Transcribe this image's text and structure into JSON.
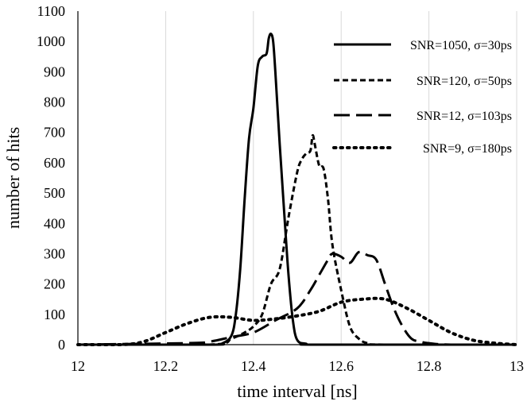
{
  "chart_data": {
    "type": "line",
    "title": "",
    "xlabel": "time interval [ns]",
    "ylabel": "number of hits",
    "xlim": [
      12,
      13
    ],
    "ylim": [
      0,
      1100
    ],
    "xticks": [
      12,
      12.2,
      12.4,
      12.6,
      12.8,
      13
    ],
    "xtick_labels": [
      "12",
      "12.2",
      "12.4",
      "12.6",
      "12.8",
      "13"
    ],
    "yticks": [
      0,
      100,
      200,
      300,
      400,
      500,
      600,
      700,
      800,
      900,
      1000,
      1100
    ],
    "ytick_labels": [
      "0",
      "100",
      "200",
      "300",
      "400",
      "500",
      "600",
      "700",
      "800",
      "900",
      "1000",
      "1100"
    ],
    "grid": "vertical",
    "legend_position": "top-right",
    "series": [
      {
        "name": "SNR=1050, σ=30ps",
        "style": "solid",
        "color": "#000000",
        "x": [
          12.0,
          12.3,
          12.33,
          12.35,
          12.36,
          12.37,
          12.38,
          12.39,
          12.4,
          12.41,
          12.42,
          12.43,
          12.435,
          12.44,
          12.445,
          12.45,
          12.46,
          12.47,
          12.48,
          12.49,
          12.5,
          12.52,
          12.55,
          13.0
        ],
        "y": [
          0,
          0,
          5,
          30,
          100,
          250,
          480,
          680,
          780,
          920,
          950,
          960,
          1010,
          1025,
          1000,
          900,
          660,
          440,
          230,
          80,
          15,
          3,
          0,
          0
        ]
      },
      {
        "name": "SNR=120, σ=50ps",
        "style": "dashed",
        "color": "#000000",
        "x": [
          12.0,
          12.3,
          12.35,
          12.38,
          12.4,
          12.42,
          12.44,
          12.46,
          12.48,
          12.5,
          12.51,
          12.52,
          12.53,
          12.535,
          12.54,
          12.55,
          12.56,
          12.57,
          12.58,
          12.6,
          12.62,
          12.64,
          12.66,
          12.7,
          13.0
        ],
        "y": [
          0,
          0,
          20,
          40,
          60,
          100,
          200,
          250,
          420,
          570,
          610,
          630,
          640,
          690,
          660,
          590,
          580,
          480,
          330,
          180,
          60,
          20,
          5,
          0,
          0
        ]
      },
      {
        "name": "SNR=12, σ=103ps",
        "style": "long-dash",
        "color": "#000000",
        "x": [
          12.0,
          12.25,
          12.3,
          12.35,
          12.4,
          12.45,
          12.5,
          12.53,
          12.55,
          12.57,
          12.58,
          12.6,
          12.62,
          12.64,
          12.66,
          12.68,
          12.7,
          12.72,
          12.74,
          12.76,
          12.78,
          12.8,
          12.85,
          13.0
        ],
        "y": [
          0,
          5,
          10,
          25,
          40,
          80,
          120,
          180,
          230,
          280,
          300,
          290,
          270,
          305,
          295,
          280,
          200,
          120,
          60,
          20,
          10,
          5,
          0,
          0
        ]
      },
      {
        "name": "SNR=9, σ=180ps",
        "style": "dotted",
        "color": "#000000",
        "x": [
          12.0,
          12.1,
          12.15,
          12.2,
          12.25,
          12.3,
          12.35,
          12.4,
          12.45,
          12.5,
          12.55,
          12.6,
          12.65,
          12.7,
          12.75,
          12.8,
          12.85,
          12.9,
          12.95,
          13.0
        ],
        "y": [
          0,
          0,
          10,
          40,
          70,
          90,
          90,
          80,
          85,
          95,
          110,
          140,
          150,
          150,
          120,
          80,
          40,
          15,
          5,
          0
        ]
      }
    ]
  }
}
